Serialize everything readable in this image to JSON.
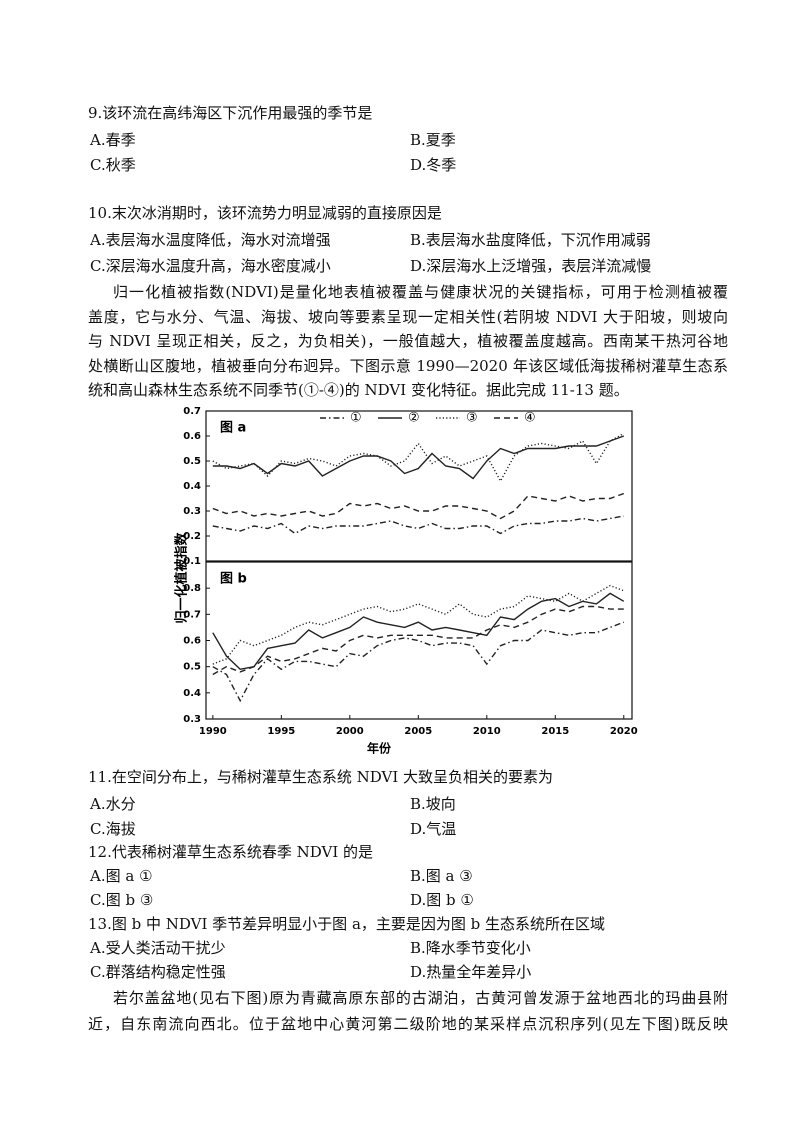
{
  "questions": [
    {
      "stem": "9.该环流在高纬海区下沉作用最强的季节是",
      "options": [
        "A.春季",
        "B.夏季",
        "C.秋季",
        "D.冬季"
      ]
    },
    {
      "stem": "10.末次冰消期时，该环流势力明显减弱的直接原因是",
      "options": [
        "A.表层海水温度降低，海水对流增强",
        "B.表层海水盐度降低，下沉作用减弱",
        "C.深层海水温度升高，海水密度减小",
        "D.深层海水上泛增强，表层洋流减慢"
      ]
    },
    {
      "stem": "11.在空间分布上，与稀树灌草生态系统 NDVI 大致呈负相关的要素为",
      "options": [
        "A.水分",
        "B.坡向",
        "C.海拔",
        "D.气温"
      ]
    },
    {
      "stem": "12.代表稀树灌草生态系统春季 NDVI 的是",
      "options": [
        "A.图 a ①",
        "B.图 a ③",
        "C.图 b ③",
        "D.图 b ①"
      ]
    },
    {
      "stem": "13.图 b 中 NDVI 季节差异明显小于图 a，主要是因为图 b 生态系统所在区域",
      "options": [
        "A.受人类活动干扰少",
        "B.降水季节变化小",
        "C.群落结构稳定性强",
        "D.热量全年差异小"
      ]
    }
  ],
  "passages": [
    {
      "lines": [
        "归一化植被指数(NDVI)是量化地表植被覆盖与健康状况的关键指标，可用于检测植被覆",
        "盖度，它与水分、气温、海拔、坡向等要素呈现一定相关性(若阴坡 NDVI 大于阳坡，则坡向",
        "与 NDVI 呈现正相关，反之，为负相关)，一般值越大，植被覆盖度越高。西南某干热河谷地",
        "处横断山区腹地，植被垂向分布迥异。下图示意 1990—2020 年该区域低海拔稀树灌草生态系",
        "统和高山森林生态系统不同季节(①-④)的 NDVI 变化特征。据此完成 11-13 题。"
      ]
    },
    {
      "lines": [
        "若尔盖盆地(见右下图)原为青藏高原东部的古湖泊，古黄河曾发源于盆地西北的玛曲县附",
        "近，自东南流向西北。位于盆地中心黄河第二级阶地的某采样点沉积序列(见左下图)既反映"
      ]
    }
  ],
  "chart_data": [
    {
      "type": "line",
      "panel_label": "图 a",
      "ylabel": "归一化植被指数",
      "legend": "top-right",
      "x": [
        1990,
        1991,
        1992,
        1993,
        1994,
        1995,
        1996,
        1997,
        1998,
        1999,
        2000,
        2001,
        2002,
        2003,
        2004,
        2005,
        2006,
        2007,
        2008,
        2009,
        2010,
        2011,
        2012,
        2013,
        2014,
        2015,
        2016,
        2017,
        2018,
        2019,
        2020
      ],
      "xlim": [
        1989.5,
        2020.6
      ],
      "ylim": [
        0.1,
        0.7
      ],
      "yticks": [
        0.1,
        0.2,
        0.3,
        0.4,
        0.5,
        0.6,
        0.7
      ],
      "series": [
        {
          "name": "①",
          "color": "#222222",
          "line_style": "dash-dot",
          "values": [
            0.24,
            0.23,
            0.22,
            0.24,
            0.23,
            0.25,
            0.21,
            0.24,
            0.23,
            0.24,
            0.24,
            0.24,
            0.25,
            0.26,
            0.24,
            0.23,
            0.25,
            0.23,
            0.23,
            0.24,
            0.24,
            0.21,
            0.24,
            0.25,
            0.25,
            0.26,
            0.26,
            0.27,
            0.26,
            0.27,
            0.28
          ]
        },
        {
          "name": "②",
          "color": "#222222",
          "line_style": "solid",
          "values": [
            0.48,
            0.48,
            0.47,
            0.49,
            0.45,
            0.49,
            0.48,
            0.5,
            0.44,
            0.47,
            0.5,
            0.52,
            0.52,
            0.5,
            0.45,
            0.47,
            0.53,
            0.48,
            0.47,
            0.43,
            0.5,
            0.55,
            0.53,
            0.55,
            0.55,
            0.55,
            0.56,
            0.56,
            0.56,
            0.58,
            0.6
          ]
        },
        {
          "name": "③",
          "color": "#222222",
          "line_style": "dotted",
          "values": [
            0.5,
            0.47,
            0.48,
            0.49,
            0.44,
            0.5,
            0.49,
            0.51,
            0.5,
            0.48,
            0.52,
            0.53,
            0.52,
            0.48,
            0.5,
            0.57,
            0.49,
            0.52,
            0.48,
            0.5,
            0.52,
            0.42,
            0.52,
            0.56,
            0.57,
            0.56,
            0.55,
            0.58,
            0.49,
            0.58,
            0.61
          ]
        },
        {
          "name": "④",
          "color": "#222222",
          "line_style": "dashed",
          "values": [
            0.31,
            0.29,
            0.3,
            0.28,
            0.29,
            0.28,
            0.29,
            0.3,
            0.28,
            0.29,
            0.33,
            0.32,
            0.33,
            0.31,
            0.32,
            0.3,
            0.3,
            0.32,
            0.32,
            0.31,
            0.3,
            0.27,
            0.3,
            0.36,
            0.35,
            0.34,
            0.36,
            0.34,
            0.35,
            0.35,
            0.37
          ]
        }
      ]
    },
    {
      "type": "line",
      "panel_label": "图 b",
      "xlabel": "年份",
      "x": [
        1990,
        1991,
        1992,
        1993,
        1994,
        1995,
        1996,
        1997,
        1998,
        1999,
        2000,
        2001,
        2002,
        2003,
        2004,
        2005,
        2006,
        2007,
        2008,
        2009,
        2010,
        2011,
        2012,
        2013,
        2014,
        2015,
        2016,
        2017,
        2018,
        2019,
        2020
      ],
      "xlim": [
        1989.5,
        2020.6
      ],
      "xticks": [
        1990,
        1995,
        2000,
        2005,
        2010,
        2015,
        2020
      ],
      "ylim": [
        0.3,
        0.9
      ],
      "yticks": [
        0.3,
        0.4,
        0.5,
        0.6,
        0.7,
        0.8
      ],
      "series": [
        {
          "color": "#222222",
          "line_style": "dash-dot",
          "values": [
            0.5,
            0.47,
            0.37,
            0.47,
            0.53,
            0.49,
            0.52,
            0.52,
            0.51,
            0.5,
            0.55,
            0.54,
            0.58,
            0.6,
            0.61,
            0.6,
            0.58,
            0.59,
            0.59,
            0.58,
            0.51,
            0.58,
            0.6,
            0.6,
            0.64,
            0.63,
            0.62,
            0.63,
            0.63,
            0.65,
            0.67
          ]
        },
        {
          "color": "#222222",
          "line_style": "solid",
          "values": [
            0.63,
            0.54,
            0.49,
            0.5,
            0.57,
            0.58,
            0.59,
            0.64,
            0.61,
            0.63,
            0.65,
            0.69,
            0.67,
            0.66,
            0.65,
            0.67,
            0.64,
            0.65,
            0.64,
            0.63,
            0.62,
            0.69,
            0.68,
            0.72,
            0.75,
            0.76,
            0.73,
            0.75,
            0.74,
            0.78,
            0.75
          ]
        },
        {
          "color": "#222222",
          "line_style": "dotted",
          "values": [
            0.51,
            0.53,
            0.6,
            0.58,
            0.6,
            0.62,
            0.65,
            0.67,
            0.66,
            0.68,
            0.7,
            0.72,
            0.73,
            0.71,
            0.72,
            0.74,
            0.72,
            0.7,
            0.74,
            0.7,
            0.69,
            0.72,
            0.73,
            0.77,
            0.76,
            0.75,
            0.78,
            0.75,
            0.78,
            0.81,
            0.79
          ]
        },
        {
          "color": "#222222",
          "line_style": "dashed",
          "values": [
            0.47,
            0.5,
            0.48,
            0.5,
            0.54,
            0.52,
            0.53,
            0.55,
            0.57,
            0.56,
            0.6,
            0.62,
            0.61,
            0.62,
            0.62,
            0.62,
            0.62,
            0.61,
            0.61,
            0.61,
            0.64,
            0.66,
            0.65,
            0.67,
            0.7,
            0.72,
            0.71,
            0.73,
            0.73,
            0.72,
            0.72
          ]
        }
      ]
    }
  ]
}
